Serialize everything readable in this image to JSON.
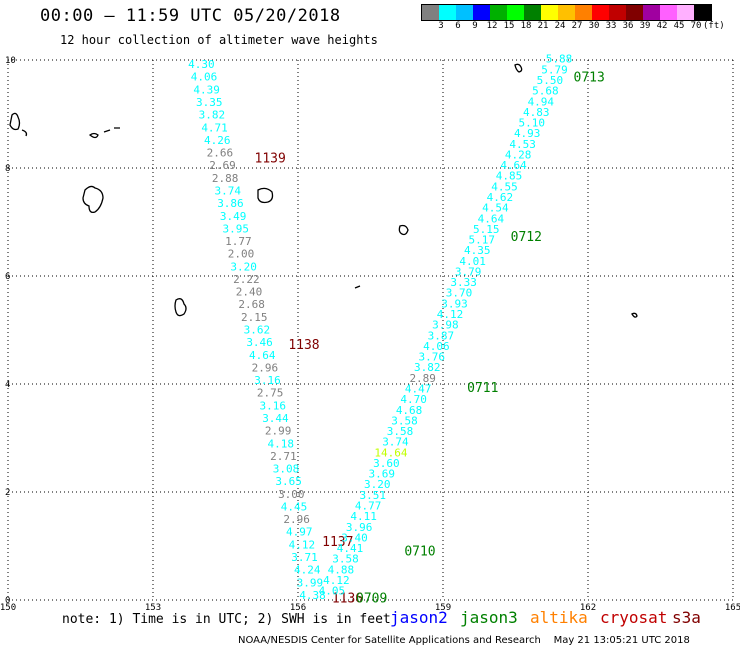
{
  "title": "00:00 – 11:59 UTC 05/20/2018",
  "subtitle": "12 hour collection of altimeter wave heights",
  "legend": {
    "colors": [
      "#808080",
      "#00ffff",
      "#00c0ff",
      "#0000ff",
      "#00b000",
      "#00ff00",
      "#008000",
      "#ffff00",
      "#ffc000",
      "#ff8000",
      "#ff0000",
      "#c00000",
      "#800000",
      "#a000a0",
      "#ff60ff",
      "#ffb0ff",
      "#000000"
    ],
    "labels": [
      "3",
      "6",
      "9",
      "12",
      "15",
      "18",
      "21",
      "24",
      "27",
      "30",
      "33",
      "36",
      "39",
      "42",
      "45",
      "70",
      "(ft)"
    ]
  },
  "note": "note: 1) Time is in UTC; 2) SWH is in feet",
  "satellites": [
    {
      "name": "jason2",
      "color": "#0000ff"
    },
    {
      "name": "jason3",
      "color": "#008000"
    },
    {
      "name": "altika",
      "color": "#ff8000"
    },
    {
      "name": "cryosat",
      "color": "#c00000"
    },
    {
      "name": "s3a",
      "color": "#800000"
    }
  ],
  "footer": "NOAA/NESDIS Center for Satellite Applications and Research    May 21 13:05:21 UTC 2018",
  "chart_data": {
    "type": "scatter",
    "xlim": [
      150,
      165
    ],
    "ylim": [
      0,
      10
    ],
    "xticks": [
      "150",
      "153",
      "156",
      "159",
      "162",
      "165"
    ],
    "yticks": [
      "0",
      "2",
      "4",
      "6",
      "8",
      "10"
    ],
    "grid": true,
    "tracks": [
      {
        "satellite": "cryosat",
        "color": "#800000",
        "start": [
          154.0,
          9.85
        ],
        "end": [
          156.3,
          0.02
        ],
        "labels": [
          {
            "text": "1139",
            "x": 155.1,
            "y": 8.1
          },
          {
            "text": "1138",
            "x": 155.8,
            "y": 4.65
          },
          {
            "text": "1137",
            "x": 156.5,
            "y": 1.0
          },
          {
            "text": "1136",
            "x": 156.7,
            "y": -0.05
          }
        ],
        "values": [
          {
            "v": "4.30",
            "c": "#00ffff"
          },
          {
            "v": "4.06",
            "c": "#00ffff"
          },
          {
            "v": "4.39",
            "c": "#00ffff"
          },
          {
            "v": "3.35",
            "c": "#00ffff"
          },
          {
            "v": "3.82",
            "c": "#00ffff"
          },
          {
            "v": "4.71",
            "c": "#00ffff"
          },
          {
            "v": "4.26",
            "c": "#00ffff"
          },
          {
            "v": "2.66",
            "c": "#808080"
          },
          {
            "v": "2.69",
            "c": "#808080"
          },
          {
            "v": "2.88",
            "c": "#808080"
          },
          {
            "v": "3.74",
            "c": "#00ffff"
          },
          {
            "v": "3.86",
            "c": "#00ffff"
          },
          {
            "v": "3.49",
            "c": "#00ffff"
          },
          {
            "v": "3.95",
            "c": "#00ffff"
          },
          {
            "v": "1.77",
            "c": "#808080"
          },
          {
            "v": "2.00",
            "c": "#808080"
          },
          {
            "v": "3.20",
            "c": "#00ffff"
          },
          {
            "v": "2.22",
            "c": "#808080"
          },
          {
            "v": "2.40",
            "c": "#808080"
          },
          {
            "v": "2.68",
            "c": "#808080"
          },
          {
            "v": "2.15",
            "c": "#808080"
          },
          {
            "v": "3.62",
            "c": "#00ffff"
          },
          {
            "v": "3.46",
            "c": "#00ffff"
          },
          {
            "v": "4.64",
            "c": "#00ffff"
          },
          {
            "v": "2.96",
            "c": "#808080"
          },
          {
            "v": "3.16",
            "c": "#00ffff"
          },
          {
            "v": "2.75",
            "c": "#808080"
          },
          {
            "v": "3.16",
            "c": "#00ffff"
          },
          {
            "v": "3.44",
            "c": "#00ffff"
          },
          {
            "v": "2.99",
            "c": "#808080"
          },
          {
            "v": "4.18",
            "c": "#00ffff"
          },
          {
            "v": "2.71",
            "c": "#808080"
          },
          {
            "v": "3.08",
            "c": "#00ffff"
          },
          {
            "v": "3.65",
            "c": "#00ffff"
          },
          {
            "v": "3.00",
            "c": "#808080"
          },
          {
            "v": "4.45",
            "c": "#00ffff"
          },
          {
            "v": "2.96",
            "c": "#808080"
          },
          {
            "v": "4.97",
            "c": "#00ffff"
          },
          {
            "v": "4.12",
            "c": "#00ffff"
          },
          {
            "v": "3.71",
            "c": "#00ffff"
          },
          {
            "v": "4.24",
            "c": "#00ffff"
          },
          {
            "v": "3.99",
            "c": "#00ffff"
          },
          {
            "v": "4.38",
            "c": "#00ffff"
          }
        ]
      },
      {
        "satellite": "jason3",
        "color": "#008000",
        "start": [
          161.4,
          9.95
        ],
        "end": [
          156.7,
          0.1
        ],
        "labels": [
          {
            "text": "0713",
            "x": 161.7,
            "y": 9.6
          },
          {
            "text": "0712",
            "x": 160.4,
            "y": 6.65
          },
          {
            "text": "0711",
            "x": 159.5,
            "y": 3.85
          },
          {
            "text": "0710",
            "x": 158.2,
            "y": 0.82
          },
          {
            "text": "0709",
            "x": 157.2,
            "y": -0.05
          }
        ],
        "values": [
          {
            "v": "5.88",
            "c": "#00ffff"
          },
          {
            "v": "5.79",
            "c": "#00ffff"
          },
          {
            "v": "5.50",
            "c": "#00ffff"
          },
          {
            "v": "5.68",
            "c": "#00ffff"
          },
          {
            "v": "4.94",
            "c": "#00ffff"
          },
          {
            "v": "4.83",
            "c": "#00ffff"
          },
          {
            "v": "5.10",
            "c": "#00ffff"
          },
          {
            "v": "4.93",
            "c": "#00ffff"
          },
          {
            "v": "4.53",
            "c": "#00ffff"
          },
          {
            "v": "4.28",
            "c": "#00ffff"
          },
          {
            "v": "4.64",
            "c": "#00ffff"
          },
          {
            "v": "4.85",
            "c": "#00ffff"
          },
          {
            "v": "4.55",
            "c": "#00ffff"
          },
          {
            "v": "4.62",
            "c": "#00ffff"
          },
          {
            "v": "4.54",
            "c": "#00ffff"
          },
          {
            "v": "4.64",
            "c": "#00ffff"
          },
          {
            "v": "5.15",
            "c": "#00ffff"
          },
          {
            "v": "5.17",
            "c": "#00ffff"
          },
          {
            "v": "4.35",
            "c": "#00ffff"
          },
          {
            "v": "4.01",
            "c": "#00ffff"
          },
          {
            "v": "3.79",
            "c": "#00ffff"
          },
          {
            "v": "3.33",
            "c": "#00ffff"
          },
          {
            "v": "3.70",
            "c": "#00ffff"
          },
          {
            "v": "3.93",
            "c": "#00ffff"
          },
          {
            "v": "4.12",
            "c": "#00ffff"
          },
          {
            "v": "3.98",
            "c": "#00ffff"
          },
          {
            "v": "3.87",
            "c": "#00ffff"
          },
          {
            "v": "4.06",
            "c": "#00ffff"
          },
          {
            "v": "3.76",
            "c": "#00ffff"
          },
          {
            "v": "3.82",
            "c": "#00ffff"
          },
          {
            "v": "2.89",
            "c": "#808080"
          },
          {
            "v": "4.47",
            "c": "#00ffff"
          },
          {
            "v": "4.70",
            "c": "#00ffff"
          },
          {
            "v": "4.68",
            "c": "#00ffff"
          },
          {
            "v": "3.58",
            "c": "#00ffff"
          },
          {
            "v": "3.58",
            "c": "#00ffff"
          },
          {
            "v": "3.74",
            "c": "#00ffff"
          },
          {
            "v": "14.64",
            "c": "#c0ff00"
          },
          {
            "v": "3.60",
            "c": "#00ffff"
          },
          {
            "v": "3.69",
            "c": "#00ffff"
          },
          {
            "v": "3.20",
            "c": "#00ffff"
          },
          {
            "v": "3.51",
            "c": "#00ffff"
          },
          {
            "v": "4.77",
            "c": "#00ffff"
          },
          {
            "v": "4.11",
            "c": "#00ffff"
          },
          {
            "v": "3.96",
            "c": "#00ffff"
          },
          {
            "v": "3.40",
            "c": "#00ffff"
          },
          {
            "v": "4.41",
            "c": "#00ffff"
          },
          {
            "v": "3.58",
            "c": "#00ffff"
          },
          {
            "v": "4.88",
            "c": "#00ffff"
          },
          {
            "v": "4.12",
            "c": "#00ffff"
          },
          {
            "v": "4.05",
            "c": "#00ffff"
          }
        ]
      }
    ]
  }
}
